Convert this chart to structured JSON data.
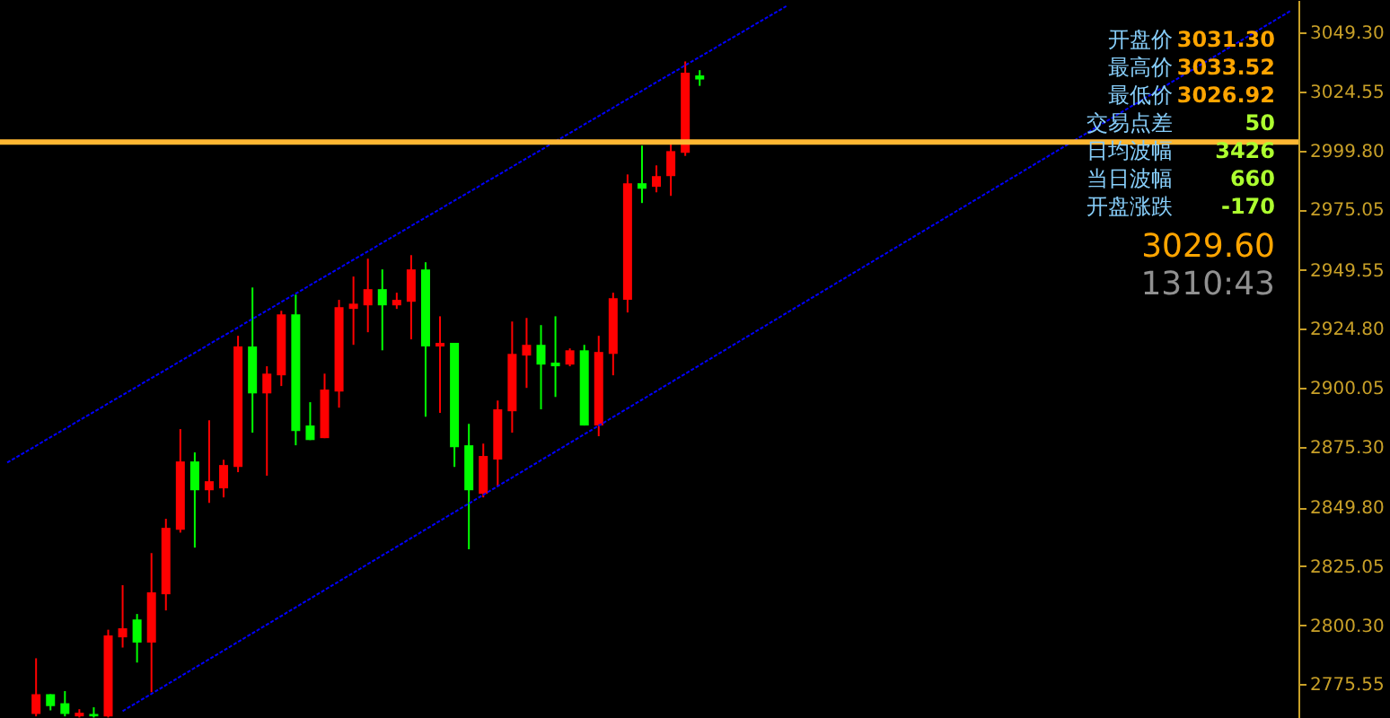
{
  "chart_data": {
    "type": "candlestick",
    "categories": [
      null,
      null,
      null,
      null,
      null,
      null,
      null,
      null,
      null,
      null,
      null,
      null,
      null,
      null,
      null,
      null,
      null,
      null,
      null,
      null,
      null,
      null,
      null,
      null,
      null,
      null,
      null,
      null,
      null,
      null,
      null,
      null,
      null,
      null,
      null,
      null,
      null,
      null,
      null,
      null,
      null,
      null,
      null,
      null,
      null,
      null,
      null,
      null,
      null,
      null,
      null,
      null,
      null,
      null,
      null,
      null,
      null,
      null,
      null,
      null,
      null,
      null,
      null,
      null,
      null,
      null,
      null,
      null,
      null,
      null,
      null,
      null,
      null,
      null,
      null,
      null,
      null,
      null,
      null,
      null,
      null,
      null,
      null,
      null,
      null,
      null,
      null,
      null,
      null,
      null
    ],
    "ohlc": [
      null,
      null,
      [
        2763,
        2786.4,
        2762,
        2771.3
      ],
      [
        2771.3,
        2771.3,
        2764.5,
        2766.3
      ],
      [
        2767.5,
        2772.6,
        2762,
        2763
      ],
      [
        2762,
        2765,
        2761.5,
        2763.5
      ],
      [
        2763,
        2765.8,
        2761.5,
        2762
      ],
      [
        2762,
        2798.4,
        2761.5,
        2796
      ],
      [
        2795.2,
        2817.1,
        2790.9,
        2799
      ],
      [
        2802.7,
        2805,
        2784.6,
        2793
      ],
      [
        2793,
        2830.6,
        2772.1,
        2814.1
      ],
      [
        2813.3,
        2845,
        2806.5,
        2841.2
      ],
      [
        2840.4,
        2882.7,
        2839.2,
        2869.1
      ],
      [
        2869.1,
        2872.9,
        2832.9,
        2857
      ],
      [
        2857,
        2886.4,
        2851.7,
        2860.8
      ],
      [
        2857.8,
        2869.8,
        2854,
        2867.6
      ],
      [
        2866.8,
        2921.9,
        2864.6,
        2917.4
      ],
      [
        2917.4,
        2942.2,
        2881.2,
        2897.7
      ],
      [
        2897.7,
        2909.1,
        2863.1,
        2906
      ],
      [
        2905.3,
        2932.4,
        2900.8,
        2930.9
      ],
      [
        2930.9,
        2939.2,
        2875.9,
        2881.9
      ],
      [
        2884.2,
        2894,
        2878.1,
        2878.1
      ],
      [
        2878.9,
        2906,
        2878.9,
        2899.3
      ],
      [
        2898.5,
        2937,
        2891.7,
        2933.9
      ],
      [
        2933.2,
        2946.8,
        2918.1,
        2935.4
      ],
      [
        2934.7,
        2954.3,
        2923.4,
        2941.5
      ],
      [
        2941.5,
        2949.8,
        2915.8,
        2934.7
      ],
      [
        2934.7,
        2940,
        2933.2,
        2937
      ],
      [
        2936.2,
        2955.8,
        2920.4,
        2949.8
      ],
      [
        2949.8,
        2952.8,
        2887.9,
        2917.4
      ],
      [
        2917.4,
        2930.1,
        2889.5,
        2918.9
      ],
      [
        2918.9,
        2918.9,
        2866.8,
        2875.1
      ],
      [
        2875.9,
        2884.9,
        2832.2,
        2857
      ],
      [
        2855.5,
        2876.6,
        2854,
        2871.4
      ],
      [
        2869.9,
        2894.7,
        2858.5,
        2891
      ],
      [
        2890.2,
        2927.9,
        2881.2,
        2914.3
      ],
      [
        2913.6,
        2929.4,
        2900,
        2918.1
      ],
      [
        2918.1,
        2926.4,
        2891,
        2909.8
      ],
      [
        2910.6,
        2930.1,
        2896.2,
        2909.1
      ],
      [
        2909.8,
        2916.6,
        2909.1,
        2915.8
      ],
      [
        2915.8,
        2918.1,
        2884.2,
        2884.2
      ],
      [
        2884.2,
        2921.9,
        2879.7,
        2915.1
      ],
      [
        2914.3,
        2940,
        2905.3,
        2937.7
      ],
      [
        2937,
        2989.7,
        2931.7,
        2986
      ],
      [
        2986,
        3001.8,
        2977.7,
        2983.7
      ],
      [
        2984.5,
        2993.5,
        2982.2,
        2989
      ],
      [
        2989,
        3002.5,
        2980.7,
        2999.5
      ],
      [
        2998.8,
        3037.2,
        2997.5,
        3032.5
      ],
      [
        3031.3,
        3033.52,
        3026.92,
        3029.6
      ],
      null,
      null,
      null,
      null,
      null,
      null,
      null,
      null,
      null,
      null,
      null,
      null,
      null,
      null,
      null,
      null,
      null,
      null,
      null,
      null,
      null,
      null,
      null,
      null,
      null,
      null,
      null,
      null,
      null,
      null,
      null,
      null,
      null,
      null,
      null,
      null,
      null,
      null,
      null,
      null,
      null
    ],
    "colors": [
      null,
      null,
      "#ff0000",
      "#00ff00",
      "#00ff00",
      "#ff0000",
      "#00ff00",
      "#ff0000",
      "#ff0000",
      "#00ff00",
      "#ff0000",
      "#ff0000",
      "#ff0000",
      "#00ff00",
      "#ff0000",
      "#ff0000",
      "#ff0000",
      "#00ff00",
      "#ff0000",
      "#ff0000",
      "#00ff00",
      "#00ff00",
      "#ff0000",
      "#ff0000",
      "#ff0000",
      "#ff0000",
      "#00ff00",
      "#ff0000",
      "#ff0000",
      "#00ff00",
      "#ff0000",
      "#00ff00",
      "#00ff00",
      "#ff0000",
      "#ff0000",
      "#ff0000",
      "#ff0000",
      "#00ff00",
      "#00ff00",
      "#ff0000",
      "#00ff00",
      "#ff0000",
      "#ff0000",
      "#ff0000",
      "#00ff00",
      "#ff0000",
      "#ff0000",
      "#ff0000",
      "#00ff00",
      null,
      null,
      null,
      null,
      null,
      null,
      null,
      null,
      null,
      null,
      null,
      null,
      null,
      null,
      null,
      null,
      null,
      null,
      null,
      null,
      null,
      null,
      null,
      null,
      null,
      null,
      null,
      null,
      null,
      null,
      null,
      null,
      null,
      null,
      null,
      null,
      null,
      null,
      null,
      null,
      null
    ],
    "series": [
      {
        "type": "line",
        "values": [
          2868.6,
          null,
          null,
          null,
          null,
          null,
          null,
          null,
          null,
          null,
          null,
          null,
          null,
          null,
          null,
          null,
          null,
          null,
          null,
          null,
          null,
          null,
          null,
          null,
          null,
          null,
          null,
          null,
          null,
          null,
          null,
          null,
          null,
          null,
          null,
          null,
          null,
          null,
          null,
          null,
          null,
          null,
          null,
          null,
          null,
          null,
          null,
          null,
          null,
          null,
          null,
          null,
          null,
          null,
          3060.4,
          null,
          null,
          null,
          null,
          null,
          null,
          null,
          null,
          null,
          null,
          null,
          null,
          null,
          null,
          null,
          null,
          null,
          null,
          null,
          null,
          null,
          null,
          null,
          null,
          null,
          null,
          null,
          null,
          null,
          null,
          null,
          null,
          null,
          null,
          null
        ],
        "color": "#0000ff",
        "line_style": "dotted"
      },
      {
        "type": "line",
        "values": [
          null,
          null,
          null,
          null,
          null,
          null,
          null,
          null,
          2764.2,
          null,
          null,
          null,
          null,
          null,
          null,
          null,
          null,
          null,
          null,
          null,
          null,
          null,
          null,
          null,
          null,
          null,
          null,
          null,
          null,
          null,
          null,
          null,
          null,
          null,
          null,
          null,
          null,
          null,
          null,
          null,
          null,
          null,
          null,
          null,
          null,
          null,
          null,
          null,
          null,
          null,
          null,
          null,
          null,
          null,
          null,
          null,
          null,
          null,
          null,
          null,
          null,
          null,
          null,
          null,
          null,
          null,
          null,
          null,
          null,
          null,
          null,
          null,
          null,
          null,
          null,
          null,
          null,
          null,
          null,
          null,
          null,
          null,
          null,
          null,
          null,
          null,
          null,
          null,
          null,
          3058.6
        ],
        "color": "#0000ff",
        "line_style": "dotted"
      }
    ],
    "ref_lines": [
      {
        "axis": "y",
        "value": 3003.3,
        "color": "#ffb732"
      }
    ],
    "ylim": [
      2761.3,
      3063
    ],
    "yticks": [
      {
        "value": 3049.3,
        "label": "3049.30"
      },
      {
        "value": 3024.55,
        "label": "3024.55"
      },
      {
        "value": 2999.8,
        "label": "2999.80"
      },
      {
        "value": 2975.05,
        "label": "2975.05"
      },
      {
        "value": 2949.55,
        "label": "2949.55"
      },
      {
        "value": 2924.8,
        "label": "2924.80"
      },
      {
        "value": 2900.05,
        "label": "2900.05"
      },
      {
        "value": 2875.3,
        "label": "2875.30"
      },
      {
        "value": 2849.8,
        "label": "2849.80"
      },
      {
        "value": 2825.05,
        "label": "2825.05"
      },
      {
        "value": 2800.3,
        "label": "2800.30"
      },
      {
        "value": 2775.55,
        "label": "2775.55"
      }
    ],
    "tick_labels": "y",
    "grid": false,
    "annotations": [
      "开盘价 3031.30",
      "最高价 3033.52",
      "最低价 3026.92",
      "交易点差 50",
      "日均波幅 3426",
      "当日波幅 660",
      "开盘涨跌 -170",
      "3029.60",
      "1310:43"
    ]
  }
}
